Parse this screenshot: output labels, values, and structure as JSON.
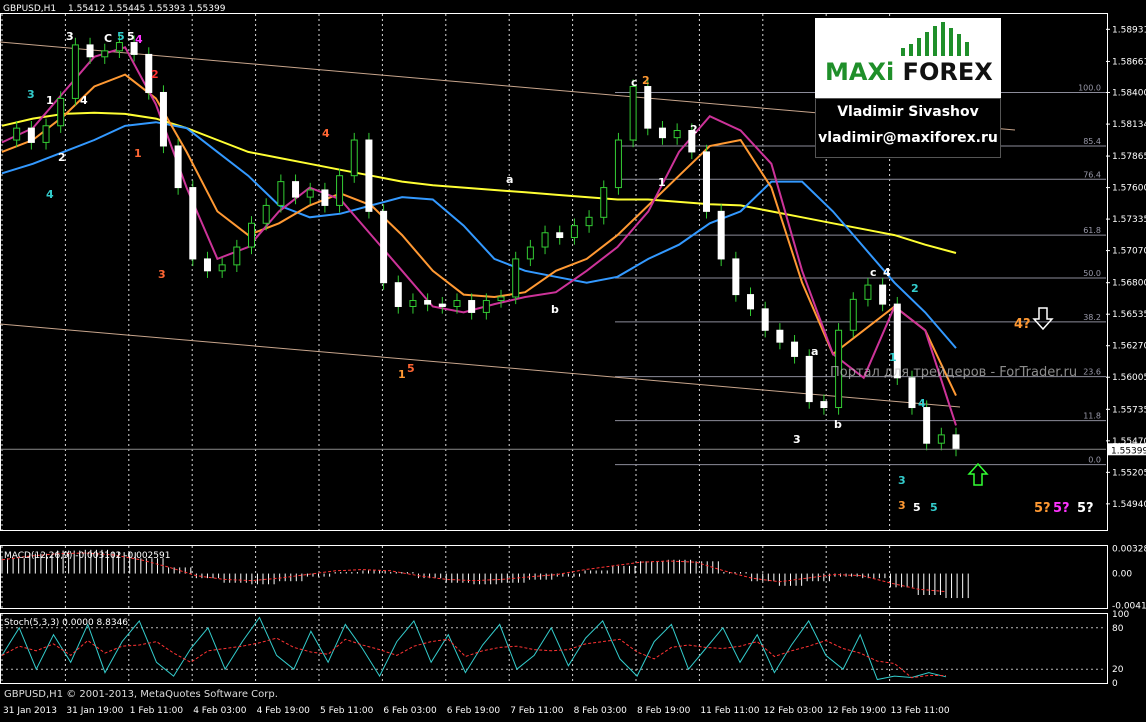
{
  "header": {
    "symbol": "GBPUSD,H1",
    "ohlc": "1.55412 1.55445 1.55393 1.55399"
  },
  "logo": {
    "brand_left": "MAXi",
    "brand_right": "FOREX",
    "author": "Vladimir Sivashov",
    "email": "vladimir@maxiforex.ru",
    "brand_color": "#1f8f2a"
  },
  "watermark": "Портал для трейдеров - ForTrader.ru",
  "copyright": "GBPUSD,H1 © 2001-2013, MetaQuotes Software Corp.",
  "chart_data": {
    "type": "line",
    "title": "GBPUSD,H1",
    "price_axis": {
      "ylim": [
        1.5472,
        1.5906
      ],
      "ticks": [
        "1.58931",
        "1.58661",
        "1.58400",
        "1.58134",
        "1.57865",
        "1.57600",
        "1.57335",
        "1.57070",
        "1.56800",
        "1.56535",
        "1.56270",
        "1.56005",
        "1.55735",
        "1.55470",
        "1.55205",
        "1.54940"
      ],
      "current_price": "1.55399"
    },
    "time_axis": {
      "labels": [
        "31 Jan 2013",
        "31 Jan 19:00",
        "1 Feb 11:00",
        "4 Feb 03:00",
        "4 Feb 19:00",
        "5 Feb 11:00",
        "6 Feb 03:00",
        "6 Feb 19:00",
        "7 Feb 11:00",
        "8 Feb 03:00",
        "8 Feb 19:00",
        "11 Feb 11:00",
        "12 Feb 03:00",
        "12 Feb 19:00",
        "13 Feb 11:00"
      ]
    },
    "price_close": [
      1.58,
      1.581,
      1.5798,
      1.5812,
      1.5835,
      1.588,
      1.587,
      1.5875,
      1.5882,
      1.5872,
      1.584,
      1.5795,
      1.576,
      1.57,
      1.569,
      1.5695,
      1.571,
      1.573,
      1.5745,
      1.5765,
      1.5752,
      1.5758,
      1.5745,
      1.577,
      1.58,
      1.574,
      1.568,
      1.566,
      1.5665,
      1.5662,
      1.566,
      1.5665,
      1.5655,
      1.5665,
      1.5668,
      1.57,
      1.571,
      1.5722,
      1.5718,
      1.5728,
      1.5735,
      1.576,
      1.58,
      1.5845,
      1.581,
      1.5802,
      1.5808,
      1.579,
      1.574,
      1.57,
      1.567,
      1.5658,
      1.564,
      1.563,
      1.5618,
      1.558,
      1.5575,
      1.564,
      1.5666,
      1.5678,
      1.5662,
      1.56,
      1.5575,
      1.5545,
      1.5552,
      1.554
    ],
    "fib_levels": [
      {
        "label": "100.0",
        "value": 1.584
      },
      {
        "label": "85.4",
        "value": 1.5795
      },
      {
        "label": "76.4",
        "value": 1.5767
      },
      {
        "label": "61.8",
        "value": 1.572
      },
      {
        "label": "50.0",
        "value": 1.5684
      },
      {
        "label": "38.2",
        "value": 1.5647
      },
      {
        "label": "23.6",
        "value": 1.5601
      },
      {
        "label": "11.8",
        "value": 1.5564
      },
      {
        "label": "0.0",
        "value": 1.5527
      }
    ],
    "moving_averages": [
      {
        "color": "#ffff33",
        "values": [
          1.5812,
          1.5818,
          1.5822,
          1.5823,
          1.5822,
          1.5818,
          1.581,
          1.58,
          1.579,
          1.5785,
          1.578,
          1.5775,
          1.577,
          1.5765,
          1.5762,
          1.576,
          1.5758,
          1.5756,
          1.5754,
          1.5752,
          1.575,
          1.575,
          1.5748,
          1.5746,
          1.5745,
          1.574,
          1.5735,
          1.573,
          1.5725,
          1.572,
          1.5712,
          1.5705
        ]
      },
      {
        "color": "#3399ff",
        "values": [
          1.5772,
          1.578,
          1.579,
          1.58,
          1.5812,
          1.5815,
          1.581,
          1.579,
          1.577,
          1.5745,
          1.5735,
          1.5738,
          1.5745,
          1.5752,
          1.575,
          1.5728,
          1.57,
          1.569,
          1.5685,
          1.568,
          1.5685,
          1.57,
          1.5712,
          1.573,
          1.574,
          1.5765,
          1.5765,
          1.574,
          1.571,
          1.568,
          1.5655,
          1.5625
        ]
      },
      {
        "color": "#ff9933",
        "values": [
          1.579,
          1.58,
          1.582,
          1.5845,
          1.5855,
          1.5835,
          1.579,
          1.574,
          1.572,
          1.573,
          1.5745,
          1.5755,
          1.5745,
          1.572,
          1.569,
          1.567,
          1.5668,
          1.5672,
          1.569,
          1.57,
          1.572,
          1.5745,
          1.577,
          1.5795,
          1.58,
          1.576,
          1.568,
          1.562,
          1.564,
          1.566,
          1.564,
          1.5585
        ]
      },
      {
        "color": "#cc3399",
        "values": [
          1.5798,
          1.581,
          1.584,
          1.587,
          1.5878,
          1.583,
          1.576,
          1.57,
          1.571,
          1.574,
          1.576,
          1.575,
          1.572,
          1.569,
          1.566,
          1.5655,
          1.5662,
          1.5668,
          1.5672,
          1.569,
          1.571,
          1.574,
          1.579,
          1.582,
          1.5808,
          1.578,
          1.569,
          1.562,
          1.56,
          1.566,
          1.564,
          1.556
        ]
      }
    ],
    "wave_labels": [
      {
        "text": "3",
        "color": "#ffffff"
      },
      {
        "text": "C",
        "color": "#ffffff"
      },
      {
        "text": "5",
        "color": "#33cccc"
      },
      {
        "text": "5",
        "color": "#ffffff"
      },
      {
        "text": "4",
        "color": "#ff33ff"
      },
      {
        "text": "3",
        "color": "#33cccc"
      },
      {
        "text": "1",
        "color": "#ffffff"
      },
      {
        "text": "4",
        "color": "#ffffff"
      },
      {
        "text": "2",
        "color": "#ff3333"
      },
      {
        "text": "2",
        "color": "#ffffff"
      },
      {
        "text": "1",
        "color": "#ff6633"
      },
      {
        "text": "4",
        "color": "#33cccc"
      },
      {
        "text": "3",
        "color": "#ff6633"
      },
      {
        "text": "4",
        "color": "#ff6633"
      },
      {
        "text": "1",
        "color": "#ff9933"
      },
      {
        "text": "5",
        "color": "#ff6633"
      },
      {
        "text": "a",
        "color": "#ffffff"
      },
      {
        "text": "b",
        "color": "#ffffff"
      },
      {
        "text": "c",
        "color": "#ffffff"
      },
      {
        "text": "2",
        "color": "#ff9933"
      },
      {
        "text": "2",
        "color": "#ffffff"
      },
      {
        "text": "1",
        "color": "#ffffff"
      },
      {
        "text": "c",
        "color": "#ffffff"
      },
      {
        "text": "4",
        "color": "#ffffff"
      },
      {
        "text": "2",
        "color": "#33cccc"
      },
      {
        "text": "a",
        "color": "#ffffff"
      },
      {
        "text": "b",
        "color": "#ffffff"
      },
      {
        "text": "3",
        "color": "#ffffff"
      },
      {
        "text": "1",
        "color": "#33cccc"
      },
      {
        "text": "4",
        "color": "#33cccc"
      },
      {
        "text": "3",
        "color": "#33cccc"
      },
      {
        "text": "3",
        "color": "#ff9933"
      },
      {
        "text": "5",
        "color": "#ffffff"
      },
      {
        "text": "5",
        "color": "#33cccc"
      },
      {
        "text": "4?",
        "color": "#ff9933"
      },
      {
        "text": "5?",
        "color": "#ff9933"
      },
      {
        "text": "5?",
        "color": "#ff33ff"
      },
      {
        "text": "5?",
        "color": "#ffffff"
      }
    ]
  },
  "macd": {
    "label": "MACD(12,26,9) -0.003102 -0.002591",
    "ticks": [
      "0.003289",
      "0.00",
      "-0.004149"
    ],
    "ylim": [
      -0.0045,
      0.0036
    ],
    "histogram": [
      0.002,
      0.0026,
      0.003,
      0.0031,
      0.0028,
      0.002,
      0.0008,
      -0.0006,
      -0.0012,
      -0.0014,
      -0.001,
      -0.0004,
      0.0002,
      0.0004,
      0.0002,
      -0.0006,
      -0.0012,
      -0.0014,
      -0.0012,
      -0.0008,
      -0.0004,
      0.0004,
      0.001,
      0.0016,
      0.0018,
      0.0016,
      0.0002,
      -0.001,
      -0.0016,
      -0.001,
      -0.0004,
      -0.0006,
      -0.0018,
      -0.0028,
      -0.0032
    ]
  },
  "stoch": {
    "label": "Stoch(5,3,3) 0.0000 8.8346",
    "ticks": [
      "100",
      "80",
      "20",
      "0"
    ],
    "ylim": [
      0,
      100
    ],
    "main": [
      40,
      80,
      20,
      70,
      30,
      85,
      15,
      60,
      90,
      30,
      10,
      50,
      80,
      20,
      60,
      95,
      40,
      20,
      75,
      30,
      85,
      50,
      10,
      60,
      90,
      30,
      70,
      15,
      55,
      85,
      20,
      40,
      80,
      25,
      65,
      90,
      35,
      10,
      60,
      85,
      20,
      50,
      80,
      30,
      70,
      15,
      55,
      90,
      40,
      20,
      70,
      5,
      10,
      8,
      15,
      9
    ]
  }
}
